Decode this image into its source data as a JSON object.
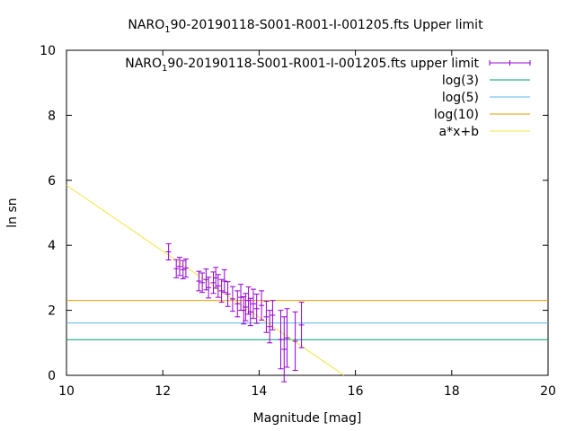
{
  "chart_data": {
    "type": "scatter",
    "title": {
      "pre": "NARO",
      "sub": "1",
      "post": "90-20190118-S001-R001-I-001205.fts Upper limit"
    },
    "xlabel": "Magnitude [mag]",
    "ylabel": "ln sn",
    "xlim": [
      10,
      20
    ],
    "ylim": [
      0,
      10
    ],
    "x_ticks": [
      "10",
      "12",
      "14",
      "16",
      "18",
      "20"
    ],
    "y_ticks": [
      "0",
      "2",
      "4",
      "6",
      "8",
      "10"
    ],
    "legend_position": "top-right",
    "series": [
      {
        "name": {
          "pre": "NARO",
          "sub": "1",
          "post": "90-20190118-S001-R001-I-001205.fts upper limit"
        },
        "kind": "errorbars",
        "color": "#9400d3",
        "points": [
          {
            "x": 12.12,
            "y": 3.8,
            "err": 0.25
          },
          {
            "x": 12.28,
            "y": 3.28,
            "err": 0.28
          },
          {
            "x": 12.35,
            "y": 3.35,
            "err": 0.28
          },
          {
            "x": 12.42,
            "y": 3.25,
            "err": 0.28
          },
          {
            "x": 12.48,
            "y": 3.3,
            "err": 0.28
          },
          {
            "x": 12.75,
            "y": 2.9,
            "err": 0.3
          },
          {
            "x": 12.82,
            "y": 2.85,
            "err": 0.3
          },
          {
            "x": 12.9,
            "y": 2.95,
            "err": 0.32
          },
          {
            "x": 12.95,
            "y": 2.7,
            "err": 0.32
          },
          {
            "x": 13.05,
            "y": 2.85,
            "err": 0.33
          },
          {
            "x": 13.1,
            "y": 3.0,
            "err": 0.32
          },
          {
            "x": 13.15,
            "y": 2.75,
            "err": 0.35
          },
          {
            "x": 13.22,
            "y": 2.6,
            "err": 0.35
          },
          {
            "x": 13.28,
            "y": 2.9,
            "err": 0.35
          },
          {
            "x": 13.35,
            "y": 2.5,
            "err": 0.38
          },
          {
            "x": 13.45,
            "y": 2.35,
            "err": 0.38
          },
          {
            "x": 13.55,
            "y": 2.2,
            "err": 0.4
          },
          {
            "x": 13.62,
            "y": 2.4,
            "err": 0.4
          },
          {
            "x": 13.68,
            "y": 2.0,
            "err": 0.42
          },
          {
            "x": 13.72,
            "y": 2.1,
            "err": 0.42
          },
          {
            "x": 13.78,
            "y": 2.3,
            "err": 0.42
          },
          {
            "x": 13.82,
            "y": 1.95,
            "err": 0.42
          },
          {
            "x": 13.88,
            "y": 2.2,
            "err": 0.45
          },
          {
            "x": 13.95,
            "y": 2.05,
            "err": 0.45
          },
          {
            "x": 14.05,
            "y": 2.15,
            "err": 0.45
          },
          {
            "x": 14.15,
            "y": 1.8,
            "err": 0.48
          },
          {
            "x": 14.22,
            "y": 1.5,
            "err": 0.5
          },
          {
            "x": 14.28,
            "y": 1.85,
            "err": 0.45
          },
          {
            "x": 14.45,
            "y": 1.1,
            "err": 0.9
          },
          {
            "x": 14.52,
            "y": 0.8,
            "err": 1.0
          },
          {
            "x": 14.58,
            "y": 1.15,
            "err": 0.9
          },
          {
            "x": 14.75,
            "y": 1.05,
            "err": 0.9
          },
          {
            "x": 14.88,
            "y": 1.55,
            "err": 0.7
          }
        ]
      },
      {
        "name": "log(3)",
        "kind": "hline",
        "color": "#009e73",
        "y": 1.0986
      },
      {
        "name": "log(5)",
        "kind": "hline",
        "color": "#56b4e9",
        "y": 1.6094
      },
      {
        "name": "log(10)",
        "kind": "hline",
        "color": "#e69f00",
        "y": 2.3026
      },
      {
        "name": "a*x+b",
        "kind": "fline",
        "color": "#f0e442",
        "a": -1.015,
        "b": 16.0
      }
    ]
  }
}
